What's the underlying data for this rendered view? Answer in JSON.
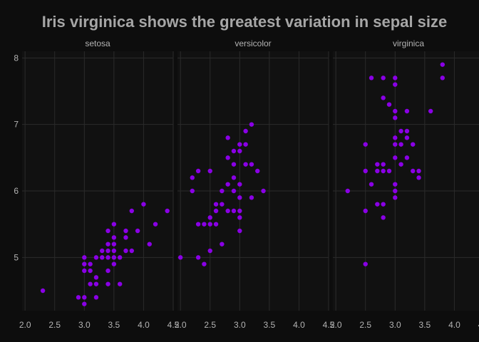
{
  "colors": {
    "background": "#0d0d0d",
    "panel": "#111111",
    "grid": "#2b2b2b",
    "point": "#8a00e6",
    "text": "#b3b3b3",
    "title": "#a6a6a6"
  },
  "chart_data": {
    "type": "scatter",
    "title": "Iris virginica shows the greatest variation in sepal size",
    "xlabel": "",
    "ylabel": "",
    "xlim": [
      1.95,
      4.5
    ],
    "ylim": [
      4.2,
      8.1
    ],
    "x_ticks": [
      "2.0",
      "2.5",
      "3.0",
      "3.5",
      "4.0",
      "4.5"
    ],
    "y_ticks": [
      "5",
      "6",
      "7",
      "8"
    ],
    "grid": true,
    "legend": "none",
    "facets": [
      {
        "name": "setosa",
        "points": [
          [
            2.3,
            4.5
          ],
          [
            2.9,
            4.4
          ],
          [
            3.0,
            4.4
          ],
          [
            3.0,
            4.3
          ],
          [
            3.2,
            4.4
          ],
          [
            3.0,
            4.8
          ],
          [
            3.0,
            4.9
          ],
          [
            3.0,
            5.0
          ],
          [
            3.1,
            4.8
          ],
          [
            3.1,
            4.9
          ],
          [
            3.1,
            4.6
          ],
          [
            3.2,
            4.6
          ],
          [
            3.2,
            4.7
          ],
          [
            3.2,
            5.0
          ],
          [
            3.3,
            5.0
          ],
          [
            3.3,
            5.1
          ],
          [
            3.4,
            5.0
          ],
          [
            3.4,
            5.1
          ],
          [
            3.4,
            5.2
          ],
          [
            3.4,
            5.4
          ],
          [
            3.4,
            4.6
          ],
          [
            3.4,
            4.8
          ],
          [
            3.5,
            5.0
          ],
          [
            3.5,
            5.1
          ],
          [
            3.5,
            5.2
          ],
          [
            3.5,
            5.5
          ],
          [
            3.5,
            5.3
          ],
          [
            3.5,
            4.9
          ],
          [
            3.6,
            5.0
          ],
          [
            3.6,
            4.6
          ],
          [
            3.7,
            5.1
          ],
          [
            3.7,
            5.3
          ],
          [
            3.7,
            5.4
          ],
          [
            3.8,
            5.1
          ],
          [
            3.8,
            5.7
          ],
          [
            3.9,
            5.4
          ],
          [
            4.0,
            5.8
          ],
          [
            4.1,
            5.2
          ],
          [
            4.2,
            5.5
          ],
          [
            4.4,
            5.7
          ]
        ]
      },
      {
        "name": "versicolor",
        "points": [
          [
            2.0,
            5.0
          ],
          [
            2.2,
            6.0
          ],
          [
            2.2,
            6.2
          ],
          [
            2.3,
            6.3
          ],
          [
            2.3,
            5.5
          ],
          [
            2.3,
            5.0
          ],
          [
            2.4,
            5.5
          ],
          [
            2.4,
            4.9
          ],
          [
            2.5,
            5.5
          ],
          [
            2.5,
            5.1
          ],
          [
            2.5,
            6.3
          ],
          [
            2.5,
            5.6
          ],
          [
            2.6,
            5.5
          ],
          [
            2.6,
            5.7
          ],
          [
            2.6,
            5.8
          ],
          [
            2.7,
            5.8
          ],
          [
            2.7,
            6.0
          ],
          [
            2.7,
            5.2
          ],
          [
            2.8,
            6.8
          ],
          [
            2.8,
            6.5
          ],
          [
            2.8,
            5.7
          ],
          [
            2.8,
            6.1
          ],
          [
            2.9,
            6.6
          ],
          [
            2.9,
            6.4
          ],
          [
            2.9,
            6.2
          ],
          [
            2.9,
            6.0
          ],
          [
            2.9,
            5.7
          ],
          [
            3.0,
            6.7
          ],
          [
            3.0,
            6.6
          ],
          [
            3.0,
            5.9
          ],
          [
            3.0,
            5.6
          ],
          [
            3.0,
            5.4
          ],
          [
            3.0,
            5.7
          ],
          [
            3.0,
            6.1
          ],
          [
            3.1,
            6.7
          ],
          [
            3.1,
            6.9
          ],
          [
            3.1,
            6.4
          ],
          [
            3.2,
            7.0
          ],
          [
            3.2,
            6.4
          ],
          [
            3.2,
            5.9
          ],
          [
            3.3,
            6.3
          ],
          [
            3.4,
            6.0
          ]
        ]
      },
      {
        "name": "virginica",
        "points": [
          [
            2.2,
            6.0
          ],
          [
            2.5,
            6.7
          ],
          [
            2.5,
            6.3
          ],
          [
            2.5,
            5.7
          ],
          [
            2.5,
            4.9
          ],
          [
            2.6,
            7.7
          ],
          [
            2.6,
            6.1
          ],
          [
            2.7,
            6.4
          ],
          [
            2.7,
            6.3
          ],
          [
            2.7,
            5.8
          ],
          [
            2.8,
            7.7
          ],
          [
            2.8,
            7.4
          ],
          [
            2.8,
            6.4
          ],
          [
            2.8,
            6.3
          ],
          [
            2.8,
            5.8
          ],
          [
            2.8,
            5.6
          ],
          [
            2.9,
            7.3
          ],
          [
            2.9,
            6.3
          ],
          [
            3.0,
            7.7
          ],
          [
            3.0,
            7.6
          ],
          [
            3.0,
            7.2
          ],
          [
            3.0,
            7.1
          ],
          [
            3.0,
            6.8
          ],
          [
            3.0,
            6.7
          ],
          [
            3.0,
            6.5
          ],
          [
            3.0,
            6.1
          ],
          [
            3.0,
            6.0
          ],
          [
            3.0,
            5.9
          ],
          [
            3.1,
            6.9
          ],
          [
            3.1,
            6.7
          ],
          [
            3.1,
            6.4
          ],
          [
            3.2,
            7.2
          ],
          [
            3.2,
            6.9
          ],
          [
            3.2,
            6.8
          ],
          [
            3.2,
            6.5
          ],
          [
            3.3,
            6.7
          ],
          [
            3.3,
            6.3
          ],
          [
            3.4,
            6.3
          ],
          [
            3.4,
            6.2
          ],
          [
            3.6,
            7.2
          ],
          [
            3.8,
            7.9
          ],
          [
            3.8,
            7.7
          ]
        ]
      }
    ]
  }
}
